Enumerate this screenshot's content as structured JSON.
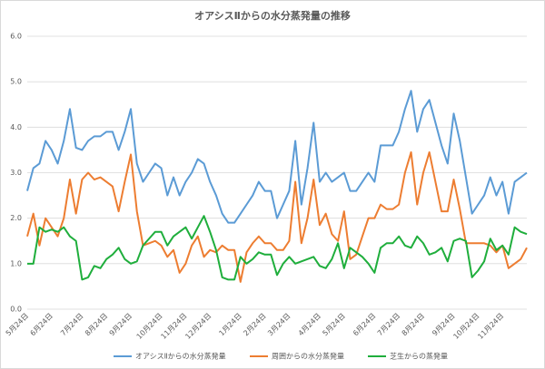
{
  "chart_data": {
    "type": "line",
    "title": "オアシスⅡからの水分蒸発量の推移",
    "categories": [
      "5月24日",
      null,
      null,
      null,
      "6月24日",
      null,
      null,
      null,
      null,
      "7月24日",
      null,
      null,
      null,
      "8月24日",
      null,
      null,
      null,
      "9月24日",
      null,
      null,
      null,
      null,
      "10月24日",
      null,
      null,
      null,
      "11月24日",
      null,
      null,
      null,
      "12月24日",
      null,
      null,
      null,
      null,
      "1月24日",
      null,
      null,
      null,
      "2月24日",
      null,
      null,
      null,
      "3月24日",
      null,
      null,
      null,
      null,
      "4月24日",
      null,
      null,
      null,
      "5月24日",
      null,
      null,
      null,
      null,
      "6月24日",
      null,
      null,
      null,
      "7月24日",
      null,
      null,
      null,
      "8月24日",
      null,
      null,
      null,
      null,
      "9月24日",
      null,
      null,
      null,
      "10月24日",
      null,
      null,
      null,
      "11月24日",
      null,
      null,
      null,
      null
    ],
    "series": [
      {
        "name": "オアシスⅡからの水分蒸発量",
        "color": "#5b9bd5",
        "values": [
          2.6,
          3.1,
          3.2,
          3.7,
          3.5,
          3.2,
          3.7,
          4.4,
          3.55,
          3.5,
          3.7,
          3.8,
          3.8,
          3.9,
          3.9,
          3.5,
          3.9,
          4.4,
          3.2,
          2.8,
          3.0,
          3.2,
          3.1,
          2.5,
          2.9,
          2.5,
          2.8,
          3.0,
          3.3,
          3.2,
          2.8,
          2.5,
          2.1,
          1.9,
          1.9,
          2.1,
          2.3,
          2.5,
          2.8,
          2.6,
          2.6,
          2.0,
          2.3,
          2.6,
          3.7,
          2.3,
          3.1,
          4.1,
          2.8,
          3.0,
          2.8,
          2.9,
          3.0,
          2.6,
          2.6,
          2.8,
          3.0,
          2.8,
          3.6,
          3.6,
          3.6,
          3.9,
          4.4,
          4.8,
          3.9,
          4.4,
          4.6,
          4.1,
          3.6,
          3.2,
          4.3,
          3.7,
          2.9,
          2.1,
          2.3,
          2.5,
          2.9,
          2.5,
          2.8,
          2.1,
          2.8,
          2.9,
          3.0
        ]
      },
      {
        "name": "周囲からの水分蒸発量",
        "color": "#ed7d31",
        "values": [
          1.6,
          2.1,
          1.4,
          2.0,
          1.8,
          1.6,
          2.0,
          2.85,
          2.1,
          2.85,
          3.0,
          2.85,
          2.9,
          2.8,
          2.7,
          2.15,
          2.8,
          3.4,
          2.15,
          1.4,
          1.45,
          1.5,
          1.4,
          1.15,
          1.3,
          0.8,
          1.0,
          1.4,
          1.6,
          1.15,
          1.3,
          1.25,
          1.4,
          1.3,
          1.3,
          0.6,
          1.25,
          1.45,
          1.6,
          1.45,
          1.45,
          1.3,
          1.3,
          1.5,
          2.8,
          1.45,
          2.0,
          2.85,
          1.85,
          2.1,
          1.65,
          1.5,
          2.15,
          1.1,
          1.2,
          1.6,
          2.0,
          2.0,
          2.3,
          2.2,
          2.2,
          2.3,
          3.0,
          3.45,
          2.3,
          3.0,
          3.45,
          2.8,
          2.15,
          2.15,
          2.85,
          2.2,
          1.45,
          1.45,
          1.45,
          1.45,
          1.4,
          1.25,
          1.4,
          0.9,
          1.0,
          1.1,
          1.35
        ]
      },
      {
        "name": "芝生からの蒸発量",
        "color": "#1fae3c",
        "values": [
          1.0,
          1.0,
          1.8,
          1.7,
          1.75,
          1.7,
          1.8,
          1.6,
          1.5,
          0.65,
          0.7,
          0.95,
          0.9,
          1.1,
          1.2,
          1.35,
          1.1,
          1.0,
          1.05,
          1.4,
          1.55,
          1.7,
          1.7,
          1.4,
          1.6,
          1.7,
          1.8,
          1.55,
          1.8,
          2.05,
          1.7,
          1.3,
          0.7,
          0.65,
          0.65,
          1.15,
          1.0,
          1.1,
          1.25,
          1.2,
          1.2,
          0.75,
          1.0,
          1.15,
          1.0,
          1.05,
          1.1,
          1.15,
          0.95,
          0.9,
          1.1,
          1.45,
          0.9,
          1.35,
          1.25,
          1.15,
          1.0,
          0.8,
          1.35,
          1.45,
          1.45,
          1.6,
          1.4,
          1.35,
          1.6,
          1.45,
          1.2,
          1.25,
          1.35,
          1.05,
          1.5,
          1.55,
          1.5,
          0.7,
          0.85,
          1.05,
          1.55,
          1.3,
          1.4,
          1.2,
          1.8,
          1.7,
          1.65
        ]
      }
    ],
    "ylim": [
      0,
      6
    ],
    "yticks": [
      {
        "value": 0,
        "label": "0.0"
      },
      {
        "value": 1,
        "label": "1.0"
      },
      {
        "value": 2,
        "label": "2.0"
      },
      {
        "value": 3,
        "label": "3.0"
      },
      {
        "value": 4,
        "label": "4.0"
      },
      {
        "value": 5,
        "label": "5.0"
      },
      {
        "value": 6,
        "label": "6.0"
      }
    ],
    "grid": true,
    "legend": "bottom"
  }
}
